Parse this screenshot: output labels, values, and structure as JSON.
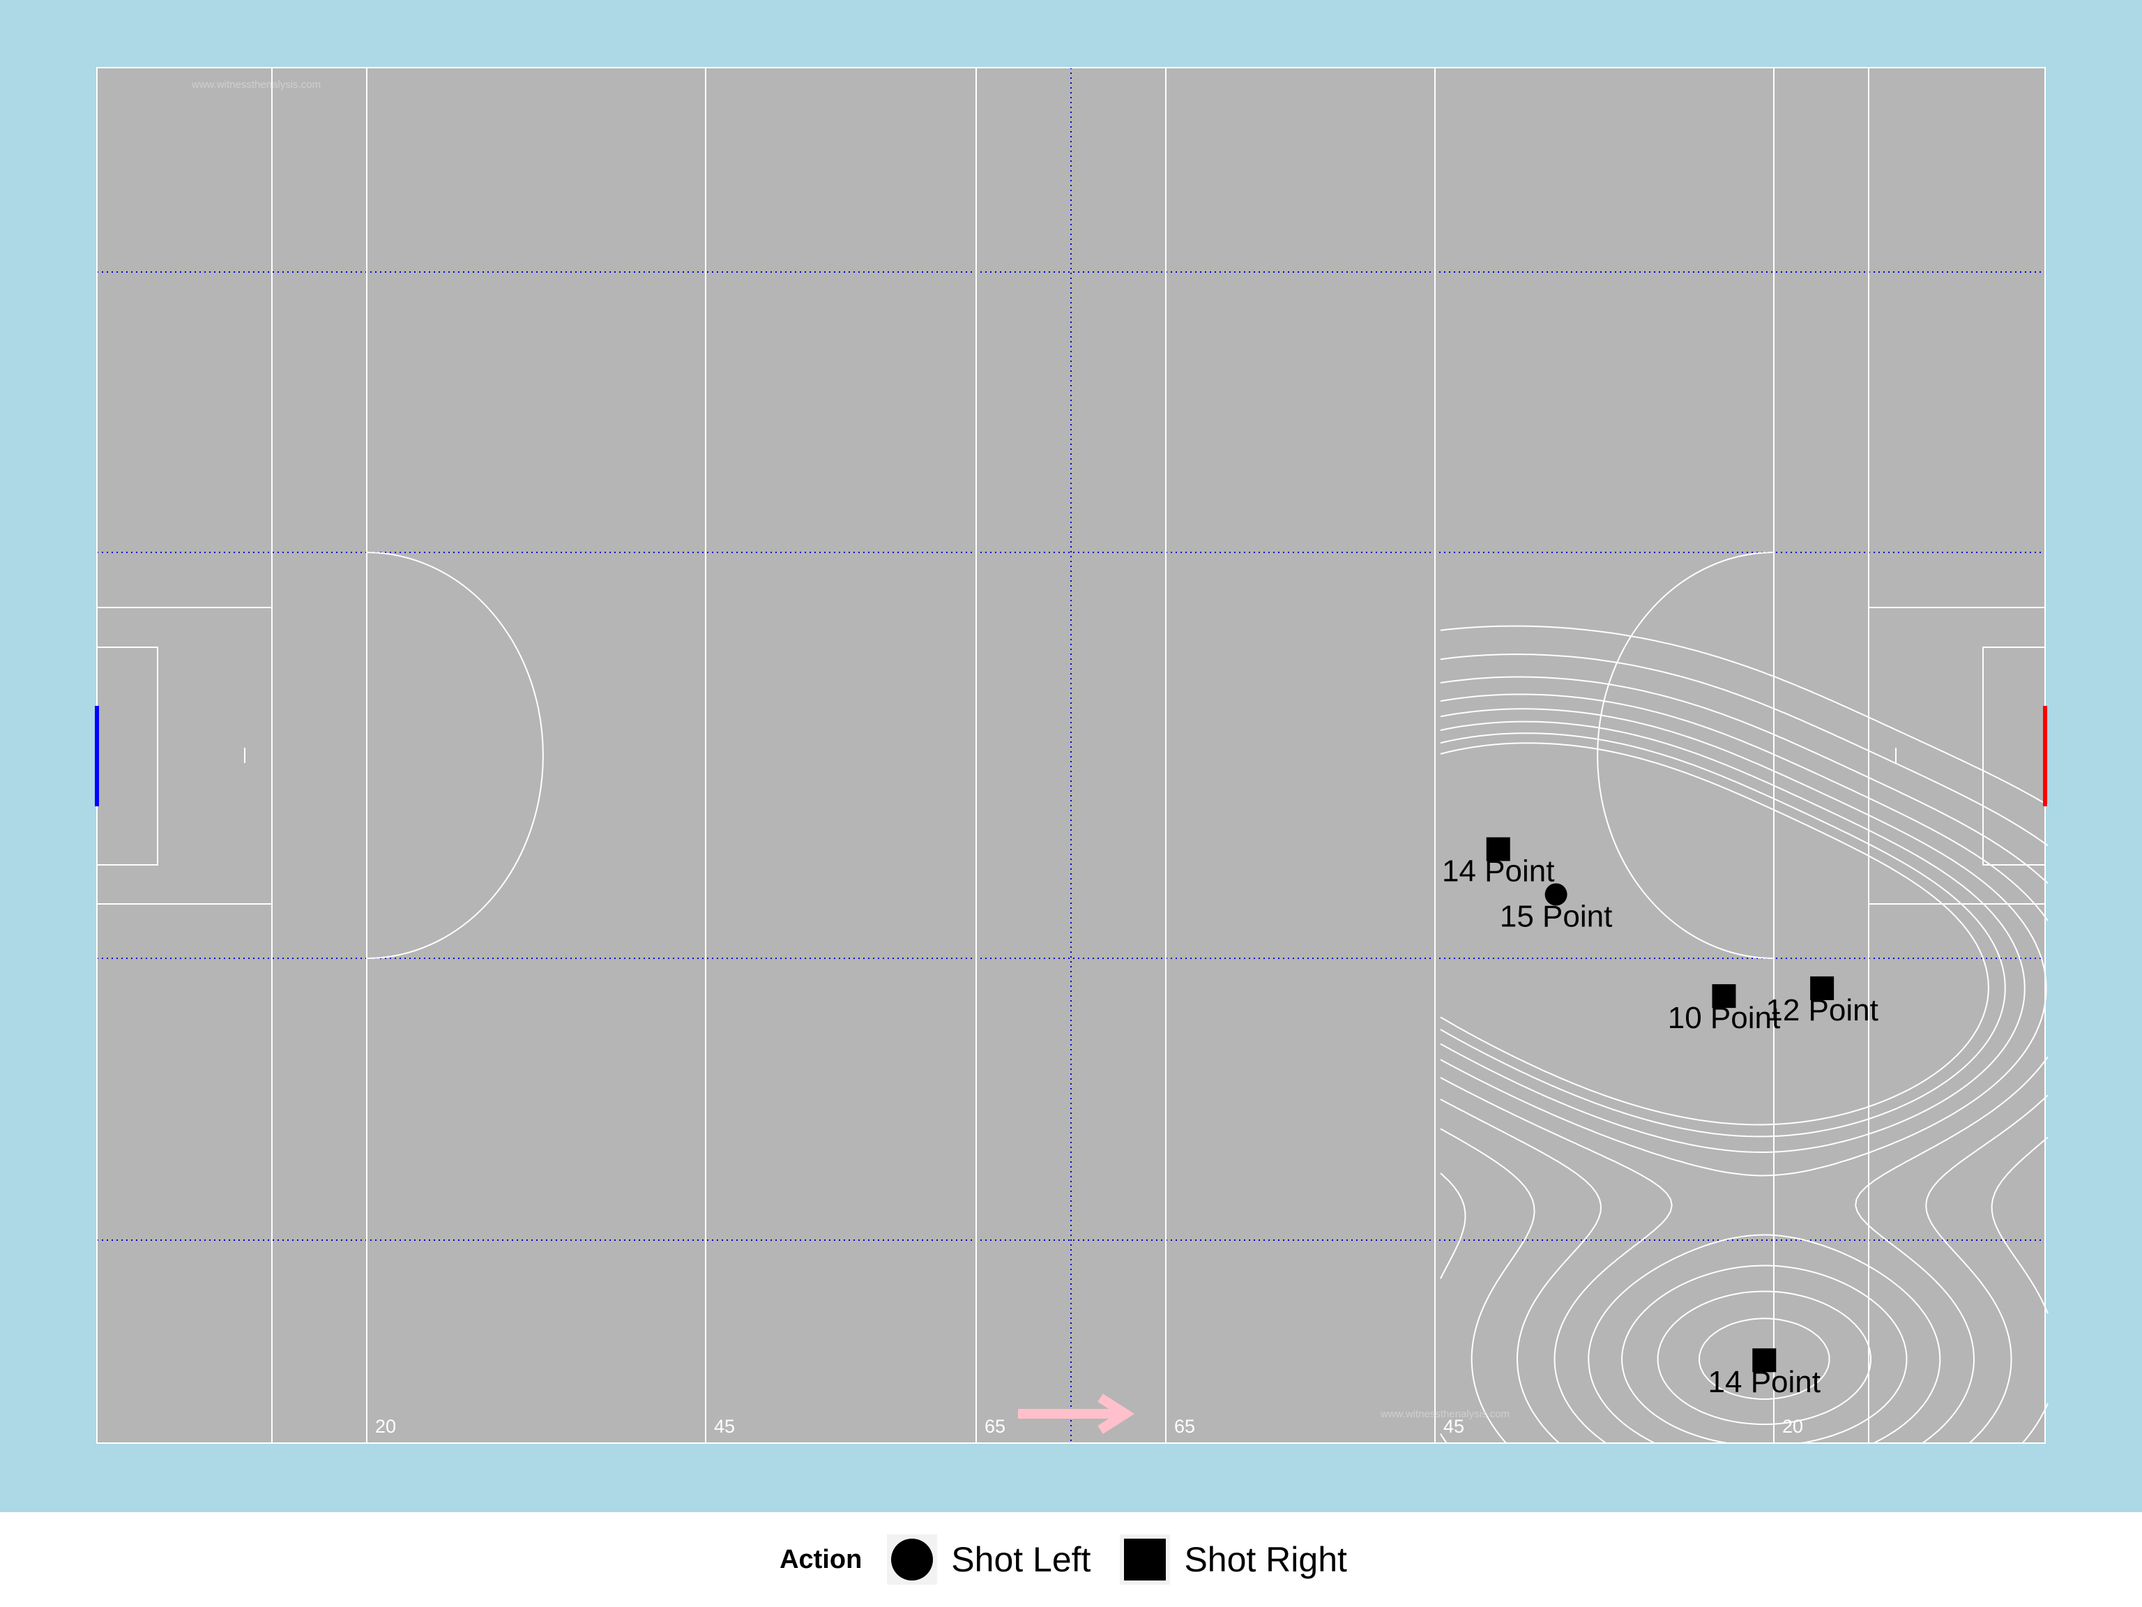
{
  "watermark": "www.witnessthenalysis.com",
  "distance_labels": [
    "20",
    "45",
    "65",
    "65",
    "45",
    "20"
  ],
  "colors": {
    "panel_background": "#add8e6",
    "pitch": "#b5b5b5",
    "pitch_lines": "#ffffff",
    "zone_lines": "#0000cd",
    "left_goal": "#0000ff",
    "right_goal": "#ff0000",
    "direction_arrow": "#ffc0cb",
    "points": "#000000"
  },
  "direction_icon": "right-arrow-icon",
  "chart_data": {
    "type": "scatter",
    "x_unit": "metres along pitch",
    "y_unit": "metres across pitch",
    "xlim": [
      0,
      145
    ],
    "ylim": [
      0,
      88
    ],
    "grid": "zone lines",
    "shapes": {
      "Shot Left": "circle",
      "Shot Right": "square"
    },
    "points": [
      {
        "x": 104.3,
        "y": 38.0,
        "action": "Shot Right",
        "label": "14 Point"
      },
      {
        "x": 108.6,
        "y": 35.1,
        "action": "Shot Left",
        "label": "15 Point"
      },
      {
        "x": 121.1,
        "y": 28.6,
        "action": "Shot Right",
        "label": "10 Point"
      },
      {
        "x": 128.4,
        "y": 29.1,
        "action": "Shot Right",
        "label": "12 Point"
      },
      {
        "x": 124.1,
        "y": 5.3,
        "action": "Shot Right",
        "label": "14 Point"
      }
    ]
  },
  "legend": {
    "title": "Action",
    "items": [
      {
        "label": "Shot Left",
        "shape": "circle"
      },
      {
        "label": "Shot Right",
        "shape": "square"
      }
    ]
  }
}
